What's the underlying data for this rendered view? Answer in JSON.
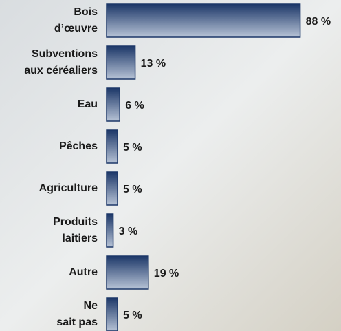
{
  "chart_data": {
    "type": "bar",
    "orientation": "horizontal",
    "categories": [
      "Bois d’œuvre",
      "Subventions aux céréaliers",
      "Eau",
      "Pêches",
      "Agriculture",
      "Produits laitiers",
      "Autre",
      "Ne sait pas"
    ],
    "values": [
      88,
      13,
      6,
      5,
      5,
      3,
      19,
      5
    ],
    "value_labels": [
      "88 %",
      "13 %",
      "6 %",
      "5 %",
      "5 %",
      "3 %",
      "19 %",
      "5 %"
    ],
    "color": "#1c3768"
  }
}
